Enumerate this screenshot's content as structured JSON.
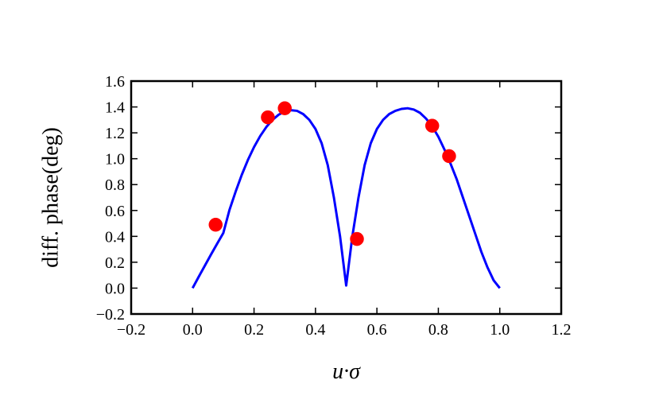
{
  "chart_data": {
    "type": "line",
    "title": "",
    "xlabel": "u·σ",
    "ylabel": "diff. phase(deg)",
    "xlim": [
      -0.2,
      1.2
    ],
    "ylim": [
      -0.2,
      1.6
    ],
    "xticks": [
      "−0.2",
      "0.0",
      "0.2",
      "0.4",
      "0.6",
      "0.8",
      "1.0",
      "1.2"
    ],
    "yticks": [
      "−0.2",
      "0.0",
      "0.2",
      "0.4",
      "0.6",
      "0.8",
      "1.0",
      "1.2",
      "1.4",
      "1.6"
    ],
    "grid": false,
    "legend": "none",
    "series": [
      {
        "kind": "line",
        "color": "#0000ff",
        "x": [
          0.0,
          0.02,
          0.04,
          0.06,
          0.08,
          0.1,
          0.12,
          0.14,
          0.16,
          0.18,
          0.2,
          0.22,
          0.24,
          0.26,
          0.28,
          0.3,
          0.32,
          0.34,
          0.36,
          0.38,
          0.4,
          0.42,
          0.44,
          0.46,
          0.48,
          0.5,
          0.52,
          0.54,
          0.56,
          0.58,
          0.6,
          0.62,
          0.64,
          0.66,
          0.68,
          0.7,
          0.72,
          0.74,
          0.76,
          0.78,
          0.8,
          0.82,
          0.84,
          0.86,
          0.88,
          0.9,
          0.92,
          0.94,
          0.96,
          0.98,
          1.0
        ],
        "y": [
          0.0,
          0.088,
          0.174,
          0.26,
          0.344,
          0.426,
          0.604,
          0.745,
          0.875,
          0.99,
          1.09,
          1.175,
          1.245,
          1.3,
          1.34,
          1.365,
          1.375,
          1.37,
          1.345,
          1.3,
          1.23,
          1.12,
          0.95,
          0.7,
          0.4,
          0.02,
          0.4,
          0.7,
          0.95,
          1.12,
          1.23,
          1.3,
          1.345,
          1.37,
          1.385,
          1.39,
          1.38,
          1.355,
          1.31,
          1.25,
          1.17,
          1.07,
          0.96,
          0.84,
          0.7,
          0.56,
          0.42,
          0.28,
          0.16,
          0.06,
          0.0
        ]
      },
      {
        "kind": "scatter",
        "color": "#ff0000",
        "x": [
          0.075,
          0.245,
          0.3,
          0.535,
          0.78,
          0.835
        ],
        "y": [
          0.49,
          1.32,
          1.39,
          0.38,
          1.255,
          1.02
        ]
      }
    ]
  }
}
